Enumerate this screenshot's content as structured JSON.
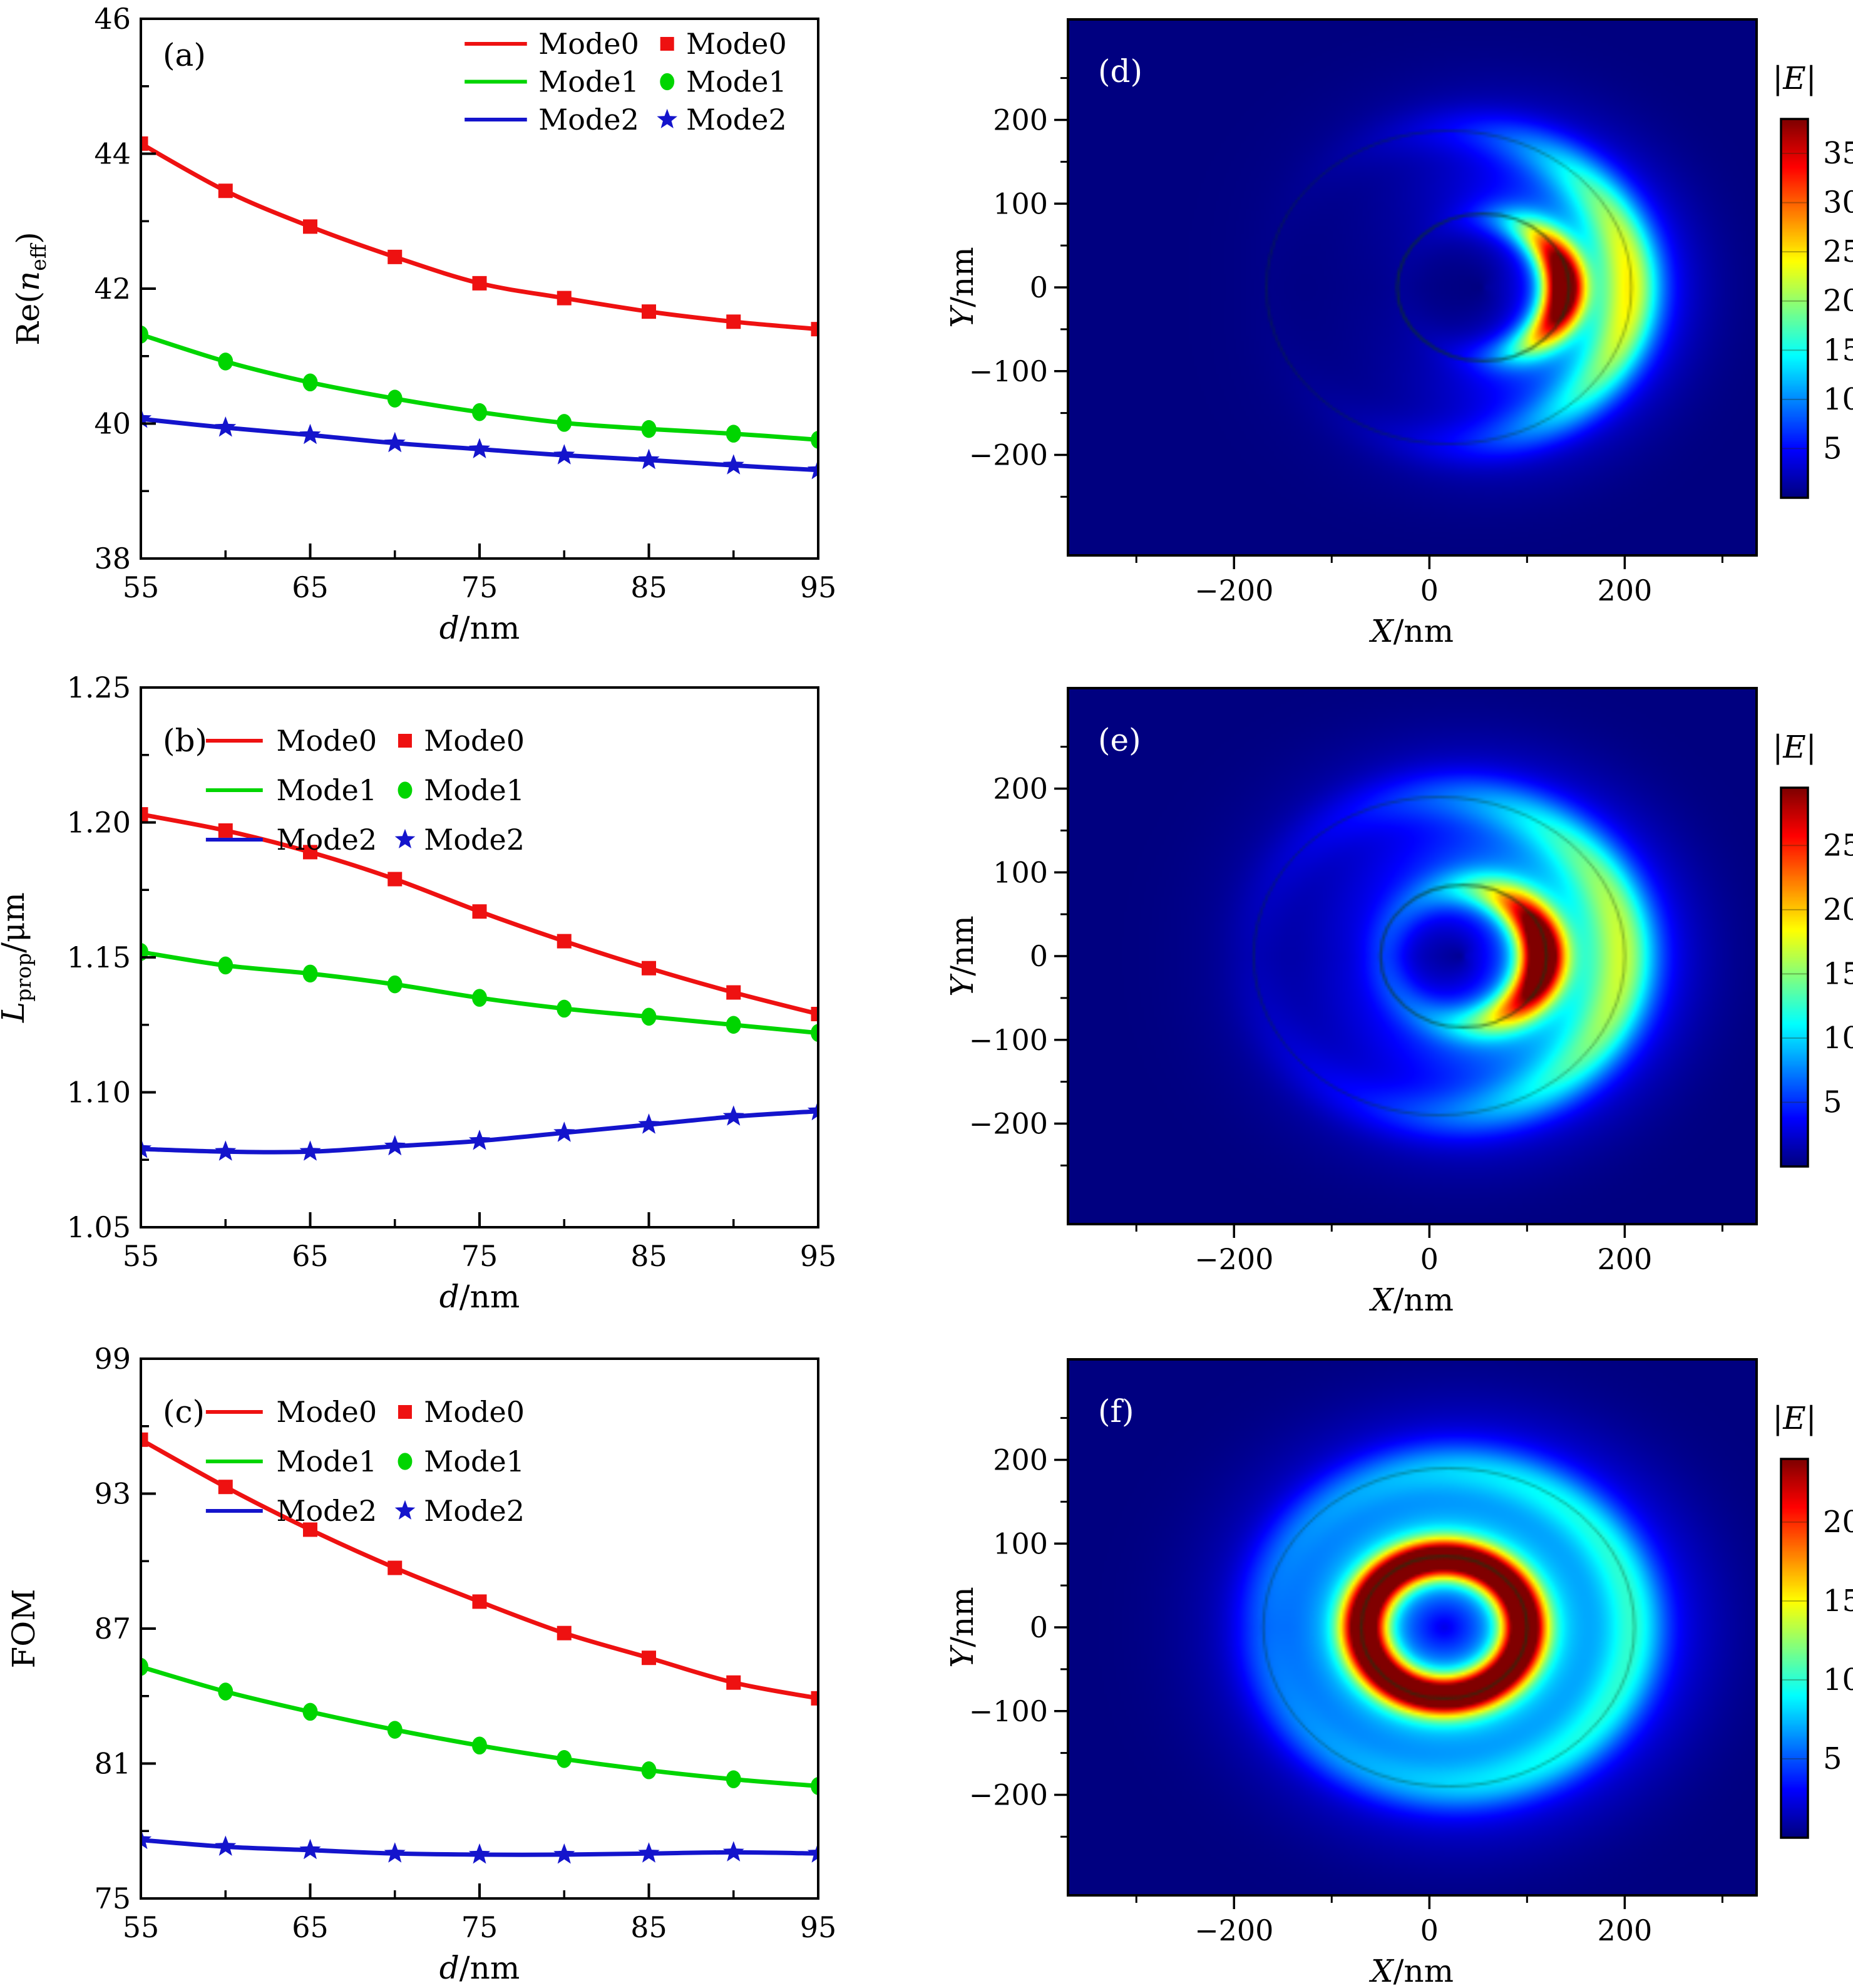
{
  "figure": {
    "background": "#ffffff",
    "columns": "line-charts-left, field-maps-right"
  },
  "legend": {
    "line_entries": [
      {
        "label": "Mode0",
        "color": "#ee1111"
      },
      {
        "label": "Mode1",
        "color": "#00d500"
      },
      {
        "label": "Mode2",
        "color": "#1414cc"
      }
    ],
    "marker_entries": [
      {
        "label": "Mode0",
        "marker": "square",
        "color": "#ee1111"
      },
      {
        "label": "Mode1",
        "marker": "circle",
        "color": "#00d500"
      },
      {
        "label": "Mode2",
        "marker": "star",
        "color": "#1414cc"
      }
    ]
  },
  "chart_data": [
    {
      "id": "a",
      "type": "line",
      "panel_label": "(a)",
      "legend_style": "right",
      "xlabel_tokens": [
        {
          "t": "d",
          "s": "it"
        },
        {
          "t": "/nm",
          "s": "up"
        }
      ],
      "ylabel_tokens": [
        {
          "t": "Re(",
          "s": "up"
        },
        {
          "t": "n",
          "s": "it"
        },
        {
          "t": "eff",
          "s": "sub"
        },
        {
          "t": ")",
          "s": "up"
        }
      ],
      "ylabel_x": 62,
      "xlim": [
        55,
        95
      ],
      "ylim": [
        38,
        46
      ],
      "xticks": [
        {
          "v": 55,
          "l": "55"
        },
        {
          "v": 65,
          "l": "65"
        },
        {
          "v": 75,
          "l": "75"
        },
        {
          "v": 85,
          "l": "85"
        },
        {
          "v": 95,
          "l": "95"
        }
      ],
      "xticks_minor": [
        60,
        70,
        80,
        90
      ],
      "yticks": [
        {
          "v": 38,
          "l": "38"
        },
        {
          "v": 40,
          "l": "40"
        },
        {
          "v": 42,
          "l": "42"
        },
        {
          "v": 44,
          "l": "44"
        },
        {
          "v": 46,
          "l": "46"
        }
      ],
      "yticks_minor": [
        39,
        41,
        43,
        45
      ],
      "x": [
        55,
        60,
        65,
        70,
        75,
        80,
        85,
        90,
        95
      ],
      "series": [
        {
          "name": "Mode0",
          "color": "#ee1111",
          "marker": "square",
          "values": [
            44.15,
            43.45,
            42.92,
            42.47,
            42.08,
            41.86,
            41.66,
            41.51,
            41.4
          ]
        },
        {
          "name": "Mode1",
          "color": "#00d500",
          "marker": "circle",
          "values": [
            41.32,
            40.92,
            40.61,
            40.37,
            40.17,
            40.01,
            39.92,
            39.85,
            39.76
          ]
        },
        {
          "name": "Mode2",
          "color": "#1414cc",
          "marker": "star",
          "values": [
            40.07,
            39.94,
            39.83,
            39.71,
            39.62,
            39.53,
            39.46,
            39.38,
            39.31
          ]
        }
      ]
    },
    {
      "id": "b",
      "type": "line",
      "panel_label": "(b)",
      "legend_style": "left",
      "xlabel_tokens": [
        {
          "t": "d",
          "s": "it"
        },
        {
          "t": "/nm",
          "s": "up"
        }
      ],
      "ylabel_tokens": [
        {
          "t": "L",
          "s": "it"
        },
        {
          "t": "prop",
          "s": "sub"
        },
        {
          "t": "/μm",
          "s": "up"
        }
      ],
      "ylabel_x": 38,
      "xlim": [
        55,
        95
      ],
      "ylim": [
        1.05,
        1.25
      ],
      "xticks": [
        {
          "v": 55,
          "l": "55"
        },
        {
          "v": 65,
          "l": "65"
        },
        {
          "v": 75,
          "l": "75"
        },
        {
          "v": 85,
          "l": "85"
        },
        {
          "v": 95,
          "l": "95"
        }
      ],
      "xticks_minor": [
        60,
        70,
        80,
        90
      ],
      "yticks": [
        {
          "v": 1.05,
          "l": "1.05"
        },
        {
          "v": 1.1,
          "l": "1.10"
        },
        {
          "v": 1.15,
          "l": "1.15"
        },
        {
          "v": 1.2,
          "l": "1.20"
        },
        {
          "v": 1.25,
          "l": "1.25"
        }
      ],
      "yticks_minor": [
        1.075,
        1.125,
        1.175,
        1.225
      ],
      "x": [
        55,
        60,
        65,
        70,
        75,
        80,
        85,
        90,
        95
      ],
      "series": [
        {
          "name": "Mode0",
          "color": "#ee1111",
          "marker": "square",
          "values": [
            1.203,
            1.197,
            1.189,
            1.179,
            1.167,
            1.156,
            1.146,
            1.137,
            1.129
          ]
        },
        {
          "name": "Mode1",
          "color": "#00d500",
          "marker": "circle",
          "values": [
            1.152,
            1.147,
            1.144,
            1.14,
            1.135,
            1.131,
            1.128,
            1.125,
            1.122
          ]
        },
        {
          "name": "Mode2",
          "color": "#1414cc",
          "marker": "star",
          "values": [
            1.079,
            1.078,
            1.078,
            1.08,
            1.082,
            1.085,
            1.088,
            1.091,
            1.093
          ]
        }
      ]
    },
    {
      "id": "c",
      "type": "line",
      "panel_label": "(c)",
      "legend_style": "left",
      "xlabel_tokens": [
        {
          "t": "d",
          "s": "it"
        },
        {
          "t": "/nm",
          "s": "up"
        }
      ],
      "ylabel_tokens": [
        {
          "t": "FOM",
          "s": "up"
        }
      ],
      "ylabel_x": 55,
      "xlim": [
        55,
        95
      ],
      "ylim": [
        75,
        99
      ],
      "xticks": [
        {
          "v": 55,
          "l": "55"
        },
        {
          "v": 65,
          "l": "65"
        },
        {
          "v": 75,
          "l": "75"
        },
        {
          "v": 85,
          "l": "85"
        },
        {
          "v": 95,
          "l": "95"
        }
      ],
      "xticks_minor": [
        60,
        70,
        80,
        90
      ],
      "yticks": [
        {
          "v": 75,
          "l": "75"
        },
        {
          "v": 81,
          "l": "81"
        },
        {
          "v": 87,
          "l": "87"
        },
        {
          "v": 93,
          "l": "93"
        },
        {
          "v": 99,
          "l": "99"
        }
      ],
      "yticks_minor": [
        78,
        84,
        90,
        96
      ],
      "x": [
        55,
        60,
        65,
        70,
        75,
        80,
        85,
        90,
        95
      ],
      "series": [
        {
          "name": "Mode0",
          "color": "#ee1111",
          "marker": "square",
          "values": [
            95.4,
            93.3,
            91.4,
            89.7,
            88.2,
            86.8,
            85.7,
            84.6,
            83.9
          ]
        },
        {
          "name": "Mode1",
          "color": "#00d500",
          "marker": "circle",
          "values": [
            85.3,
            84.2,
            83.3,
            82.5,
            81.8,
            81.2,
            80.7,
            80.3,
            80.0
          ]
        },
        {
          "name": "Mode2",
          "color": "#1414cc",
          "marker": "star",
          "values": [
            77.6,
            77.3,
            77.15,
            77.0,
            76.95,
            76.95,
            77.0,
            77.05,
            77.0
          ]
        }
      ]
    },
    {
      "id": "d",
      "type": "heatmap",
      "panel_label": "(d)",
      "xlabel_tokens": [
        {
          "t": "X",
          "s": "it"
        },
        {
          "t": "/nm",
          "s": "up"
        }
      ],
      "ylabel_tokens": [
        {
          "t": "Y",
          "s": "it"
        },
        {
          "t": "/nm",
          "s": "up"
        }
      ],
      "xlim": [
        -370,
        335
      ],
      "ylim": [
        -320,
        320
      ],
      "xticks": [
        {
          "v": -200,
          "l": "−200"
        },
        {
          "v": 0,
          "l": "0"
        },
        {
          "v": 200,
          "l": "200"
        }
      ],
      "xticks_minor": [
        -300,
        -100,
        100,
        300
      ],
      "yticks": [
        {
          "v": -200,
          "l": "−200"
        },
        {
          "v": -100,
          "l": "−100"
        },
        {
          "v": 0,
          "l": "0"
        },
        {
          "v": 100,
          "l": "100"
        },
        {
          "v": 200,
          "l": "200"
        }
      ],
      "yticks_minor": [
        -250,
        -150,
        -50,
        50,
        150,
        250
      ],
      "colorbar": {
        "title_tokens": [
          {
            "t": "|",
            "s": "up"
          },
          {
            "t": "E",
            "s": "it"
          },
          {
            "t": "|",
            "s": "up"
          }
        ],
        "vmin": 0,
        "vmax": 38.5,
        "ticks": [
          {
            "v": 5,
            "l": "5"
          },
          {
            "v": 10,
            "l": "10"
          },
          {
            "v": 15,
            "l": "15"
          },
          {
            "v": 20,
            "l": "20"
          },
          {
            "v": 25,
            "l": "25"
          },
          {
            "v": 30,
            "l": "30"
          },
          {
            "v": 35,
            "l": "35"
          }
        ]
      },
      "rings": {
        "inner": {
          "cx": 55,
          "cy": 0,
          "r": 88
        },
        "outer": {
          "cx": 20,
          "cy": 0,
          "r": 187
        }
      },
      "field_components": [
        {
          "ring": "inner",
          "amp": 37,
          "sigma": 15,
          "peak_offset": 6,
          "theta_sigma": 0.72,
          "base": 0.01
        },
        {
          "ring": "inner",
          "amp": 9,
          "sigma": 45,
          "peak_offset": -10,
          "theta_sigma": 1.1,
          "base": 0.04
        },
        {
          "ring": "outer",
          "amp": 15,
          "sigma": 20,
          "peak_offset": 0,
          "theta_sigma": 0.85,
          "base": 0.01
        },
        {
          "ring": "outer",
          "amp": 5,
          "sigma": 50,
          "peak_offset": 0,
          "theta_sigma": 1.0,
          "base": 0.02
        }
      ]
    },
    {
      "id": "e",
      "type": "heatmap",
      "panel_label": "(e)",
      "xlabel_tokens": [
        {
          "t": "X",
          "s": "it"
        },
        {
          "t": "/nm",
          "s": "up"
        }
      ],
      "ylabel_tokens": [
        {
          "t": "Y",
          "s": "it"
        },
        {
          "t": "/nm",
          "s": "up"
        }
      ],
      "xlim": [
        -370,
        335
      ],
      "ylim": [
        -320,
        320
      ],
      "xticks": [
        {
          "v": -200,
          "l": "−200"
        },
        {
          "v": 0,
          "l": "0"
        },
        {
          "v": 200,
          "l": "200"
        }
      ],
      "xticks_minor": [
        -300,
        -100,
        100,
        300
      ],
      "yticks": [
        {
          "v": -200,
          "l": "−200"
        },
        {
          "v": -100,
          "l": "−100"
        },
        {
          "v": 0,
          "l": "0"
        },
        {
          "v": 100,
          "l": "100"
        },
        {
          "v": 200,
          "l": "200"
        }
      ],
      "yticks_minor": [
        -250,
        -150,
        -50,
        50,
        150,
        250
      ],
      "colorbar": {
        "title_tokens": [
          {
            "t": "|",
            "s": "up"
          },
          {
            "t": "E",
            "s": "it"
          },
          {
            "t": "|",
            "s": "up"
          }
        ],
        "vmin": 0,
        "vmax": 29.5,
        "ticks": [
          {
            "v": 5,
            "l": "5"
          },
          {
            "v": 10,
            "l": "10"
          },
          {
            "v": 15,
            "l": "15"
          },
          {
            "v": 20,
            "l": "20"
          },
          {
            "v": 25,
            "l": "25"
          }
        ]
      },
      "rings": {
        "inner": {
          "cx": 35,
          "cy": 0,
          "r": 85
        },
        "outer": {
          "cx": 10,
          "cy": 0,
          "r": 190
        }
      },
      "field_components": [
        {
          "ring": "inner",
          "amp": 28,
          "sigma": 16,
          "peak_offset": 5,
          "theta_sigma": 0.8,
          "base": 0.1
        },
        {
          "ring": "inner",
          "amp": 9,
          "sigma": 50,
          "peak_offset": -5,
          "theta_sigma": 1.3,
          "base": 0.25
        },
        {
          "ring": "outer",
          "amp": 10,
          "sigma": 22,
          "peak_offset": 0,
          "theta_sigma": 1.1,
          "base": 0.06
        },
        {
          "ring": "outer",
          "amp": 4,
          "sigma": 55,
          "peak_offset": 0,
          "theta_sigma": 1.2,
          "base": 0.12
        }
      ]
    },
    {
      "id": "f",
      "type": "heatmap",
      "panel_label": "(f)",
      "xlabel_tokens": [
        {
          "t": "X",
          "s": "it"
        },
        {
          "t": "/nm",
          "s": "up"
        }
      ],
      "ylabel_tokens": [
        {
          "t": "Y",
          "s": "it"
        },
        {
          "t": "/nm",
          "s": "up"
        }
      ],
      "xlim": [
        -370,
        335
      ],
      "ylim": [
        -320,
        320
      ],
      "xticks": [
        {
          "v": -200,
          "l": "−200"
        },
        {
          "v": 0,
          "l": "0"
        },
        {
          "v": 200,
          "l": "200"
        }
      ],
      "xticks_minor": [
        -300,
        -100,
        100,
        300
      ],
      "yticks": [
        {
          "v": -200,
          "l": "−200"
        },
        {
          "v": -100,
          "l": "−100"
        },
        {
          "v": 0,
          "l": "0"
        },
        {
          "v": 100,
          "l": "100"
        },
        {
          "v": 200,
          "l": "200"
        }
      ],
      "yticks_minor": [
        -250,
        -150,
        -50,
        50,
        150,
        250
      ],
      "colorbar": {
        "title_tokens": [
          {
            "t": "|",
            "s": "up"
          },
          {
            "t": "E",
            "s": "it"
          },
          {
            "t": "|",
            "s": "up"
          }
        ],
        "vmin": 0,
        "vmax": 24,
        "ticks": [
          {
            "v": 5,
            "l": "5"
          },
          {
            "v": 10,
            "l": "10"
          },
          {
            "v": 15,
            "l": "15"
          },
          {
            "v": 20,
            "l": "20"
          }
        ]
      },
      "rings": {
        "inner": {
          "cx": 15,
          "cy": 0,
          "r": 85
        },
        "outer": {
          "cx": 20,
          "cy": 0,
          "r": 190
        }
      },
      "field_components": [
        {
          "ring": "inner",
          "amp": 22,
          "sigma": 16,
          "peak_offset": 3,
          "theta_sigma": 9,
          "base": 1
        },
        {
          "ring": "inner",
          "amp": 8,
          "sigma": 55,
          "peak_offset": 0,
          "theta_sigma": 9,
          "base": 1
        },
        {
          "ring": "outer",
          "amp": 6,
          "sigma": 22,
          "peak_offset": 0,
          "theta_sigma": 1.6,
          "base": 0.3
        },
        {
          "ring": "outer",
          "amp": 3,
          "sigma": 60,
          "peak_offset": 0,
          "theta_sigma": 1.6,
          "base": 0.35
        }
      ]
    }
  ]
}
